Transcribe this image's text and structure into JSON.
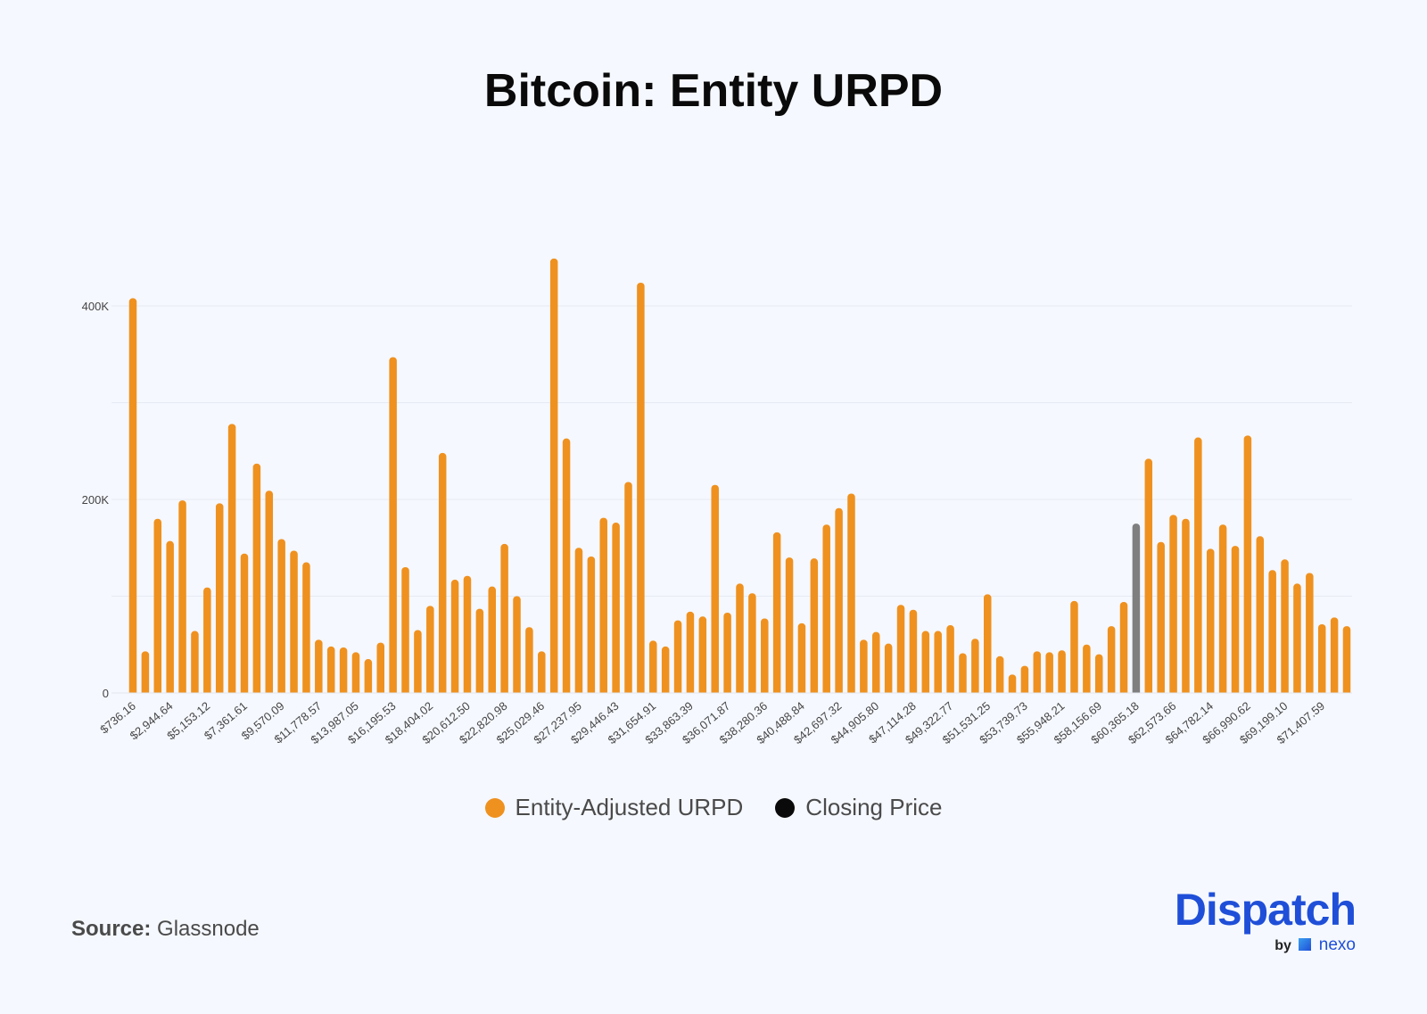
{
  "chart_data": {
    "type": "bar",
    "title": "Bitcoin: Entity URPD",
    "xlabel": "",
    "ylabel": "",
    "ylim": [
      0,
      460000
    ],
    "y_ticks": [
      0,
      200000,
      400000
    ],
    "y_tick_labels": [
      "0",
      "200K",
      "400K"
    ],
    "grid": true,
    "grid_values": [
      0,
      100000,
      200000,
      300000,
      400000
    ],
    "legend_position": "bottom",
    "x_tick_labels": [
      "$736.16",
      "$2,944.64",
      "$5,153.12",
      "$7,361.61",
      "$9,570.09",
      "$11,778.57",
      "$13,987.05",
      "$16,195.53",
      "$18,404.02",
      "$20,612.50",
      "$22,820.98",
      "$25,029.46",
      "$27,237.95",
      "$29,446.43",
      "$31,654.91",
      "$33,863.39",
      "$36,071.87",
      "$38,280.36",
      "$40,488.84",
      "$42,697.32",
      "$44,905.80",
      "$47,114.28",
      "$49,322.77",
      "$51,531.25",
      "$53,739.73",
      "$55,948.21",
      "$58,156.69",
      "$60,365.18",
      "$62,573.66",
      "$64,782.14",
      "$66,990.62",
      "$69,199.10",
      "$71,407.59"
    ],
    "x_tick_every": 3,
    "values": [
      408000,
      43000,
      180000,
      157000,
      199000,
      64000,
      109000,
      196000,
      278000,
      144000,
      237000,
      209000,
      159000,
      147000,
      135000,
      55000,
      48000,
      47000,
      42000,
      35000,
      52000,
      347000,
      130000,
      65000,
      90000,
      248000,
      117000,
      121000,
      87000,
      110000,
      154000,
      100000,
      68000,
      43000,
      449000,
      263000,
      150000,
      141000,
      181000,
      176000,
      218000,
      424000,
      54000,
      48000,
      75000,
      84000,
      79000,
      215000,
      83000,
      113000,
      103000,
      77000,
      166000,
      140000,
      72000,
      139000,
      174000,
      191000,
      206000,
      55000,
      63000,
      51000,
      91000,
      86000,
      64000,
      64000,
      70000,
      41000,
      56000,
      102000,
      38000,
      19000,
      28000,
      43000,
      42000,
      44000,
      95000,
      50000,
      40000,
      69000,
      94000,
      175000,
      242000,
      156000,
      184000,
      180000,
      264000,
      149000,
      174000,
      152000,
      266000,
      162000,
      127000,
      138000,
      113000,
      124000,
      71000,
      78000,
      69000
    ],
    "closing_price_index": 81,
    "series": [
      {
        "name": "Entity-Adjusted URPD",
        "color": "#ef911f"
      },
      {
        "name": "Closing Price",
        "color": "#0a0a0a",
        "bar_color": "#7f7f7f"
      }
    ]
  },
  "source": {
    "label": "Source:",
    "value": "Glassnode"
  },
  "logo": {
    "word": "Dispatch",
    "by": "by",
    "partner": "nexo"
  }
}
